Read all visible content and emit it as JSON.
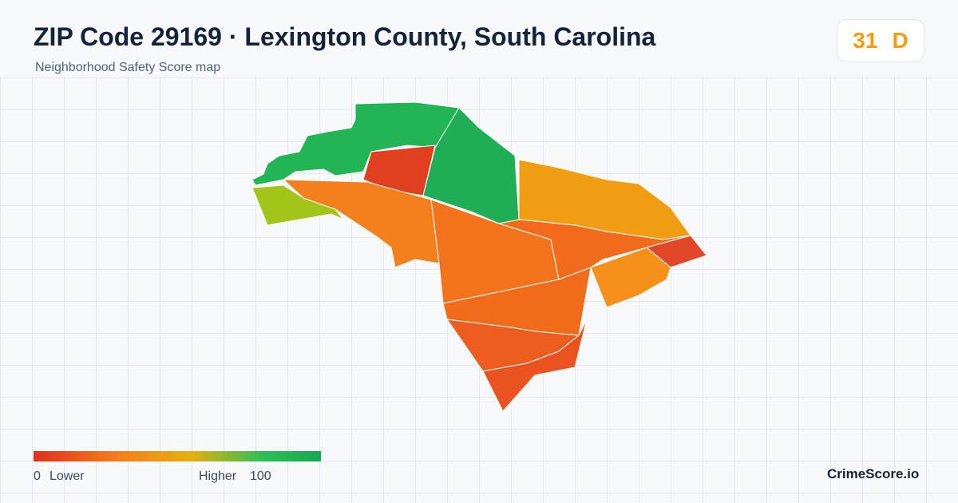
{
  "header": {
    "title": "ZIP Code 29169 · Lexington County, South Carolina",
    "subtitle": "Neighborhood Safety Score map",
    "score": 31,
    "grade": "D"
  },
  "legend": {
    "min": 0,
    "low_label": "Lower",
    "high_label": "Higher",
    "max": 100
  },
  "footer": {
    "brand": "CrimeScore.io"
  }
}
